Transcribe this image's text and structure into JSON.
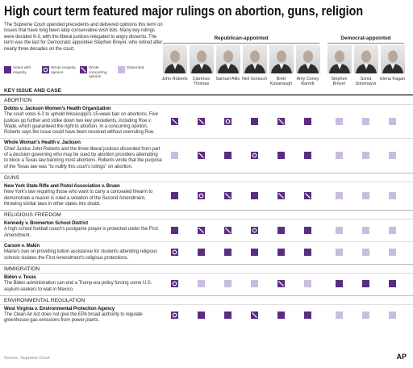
{
  "title": "High court term featured major rulings on abortion, guns, religion",
  "intro": "The Supreme Court upended precedents and delivered opinions this term on issues that have long been atop conservative wish lists. Many key rulings were decided 6-3, with the liberal justices relegated to angry dissents. The term was the last for Democratic appointee Stephen Breyer, who retired after nearly three decades on the court.",
  "legend": [
    "Voted with majority",
    "Wrote majority opinion",
    "Wrote concurring opinion",
    "Dissented"
  ],
  "groups": [
    {
      "label": "Republican-appointed",
      "justices": [
        "John Roberts",
        "Clarence Thomas",
        "Samuel Alito",
        "Neil Gorsuch",
        "Brett Kavanaugh",
        "Amy Coney Barrett"
      ]
    },
    {
      "label": "Democrat-appointed",
      "justices": [
        "Stephen Breyer",
        "Sonia Sotomayor",
        "Elena Kagan"
      ]
    }
  ],
  "table_header": "KEY ISSUE AND CASE",
  "sections": [
    {
      "name": "ABORTION",
      "cases": [
        {
          "title": "Dobbs v. Jackson Women's Health Organization",
          "text": "The court votes 6-3 to uphold Mississippi's 15-week ban on abortions. Five justices go further and strike down two key precedents, including Roe v. Wade, which guaranteed the right to abortion. In a concurring opinion, Roberts says the issue could have been resolved without overruling Roe.",
          "votes": [
            2,
            2,
            1,
            0,
            2,
            0,
            3,
            3,
            3
          ]
        },
        {
          "title": "Whole Woman's Health v. Jackson",
          "text": "Chief Justice John Roberts and the three liberal justices dissented from part of a decision governing who may be sued by abortion providers attempting to block a Texas law banning most abortions. Roberts wrote that the purpose of the Texas law was \"to nullify this court's rulings\" on abortion.",
          "votes": [
            3,
            2,
            0,
            1,
            0,
            0,
            3,
            3,
            3
          ]
        }
      ]
    },
    {
      "name": "GUNS",
      "cases": [
        {
          "title": "New York State Rifle and Pistol Association v. Bruen",
          "text": "New York's law requiring those who want to carry a concealed firearm to demonstrate a reason is ruled a violation of the Second Amendment, throwing similar laws in other states into doubt.",
          "votes": [
            0,
            1,
            2,
            0,
            2,
            2,
            3,
            3,
            3
          ]
        }
      ]
    },
    {
      "name": "RELIGIOUS FREEDOM",
      "cases": [
        {
          "title": "Kennedy v. Bremerton School District",
          "text": "A high school football coach's postgame prayer is protected under the First Amendment.",
          "votes": [
            0,
            2,
            2,
            1,
            0,
            0,
            3,
            3,
            3
          ]
        },
        {
          "title": "Carson v. Makin",
          "text": "Maine's ban on providing tuition assistance for students attending religious schools violates the First Amendment's religious protections.",
          "votes": [
            1,
            0,
            0,
            0,
            0,
            0,
            3,
            3,
            3
          ]
        }
      ]
    },
    {
      "name": "IMMIGRATION",
      "cases": [
        {
          "title": "Biden v. Texas",
          "text": "The Biden administration can end a Trump-era policy forcing some U.S. asylum-seekers to wait in Mexico.",
          "votes": [
            1,
            3,
            3,
            3,
            2,
            3,
            0,
            0,
            0
          ]
        }
      ]
    },
    {
      "name": "ENVIRONMENTAL REGULATION",
      "cases": [
        {
          "title": "West Virginia v. Environmental Protection Agency",
          "text": "The Clean Air Act does not give the EPA broad authority to regulate greenhouse gas emissions from power plants.",
          "votes": [
            1,
            0,
            0,
            2,
            0,
            0,
            3,
            3,
            3
          ]
        }
      ]
    }
  ],
  "source": "Source: Supreme Court",
  "logo": "AP"
}
